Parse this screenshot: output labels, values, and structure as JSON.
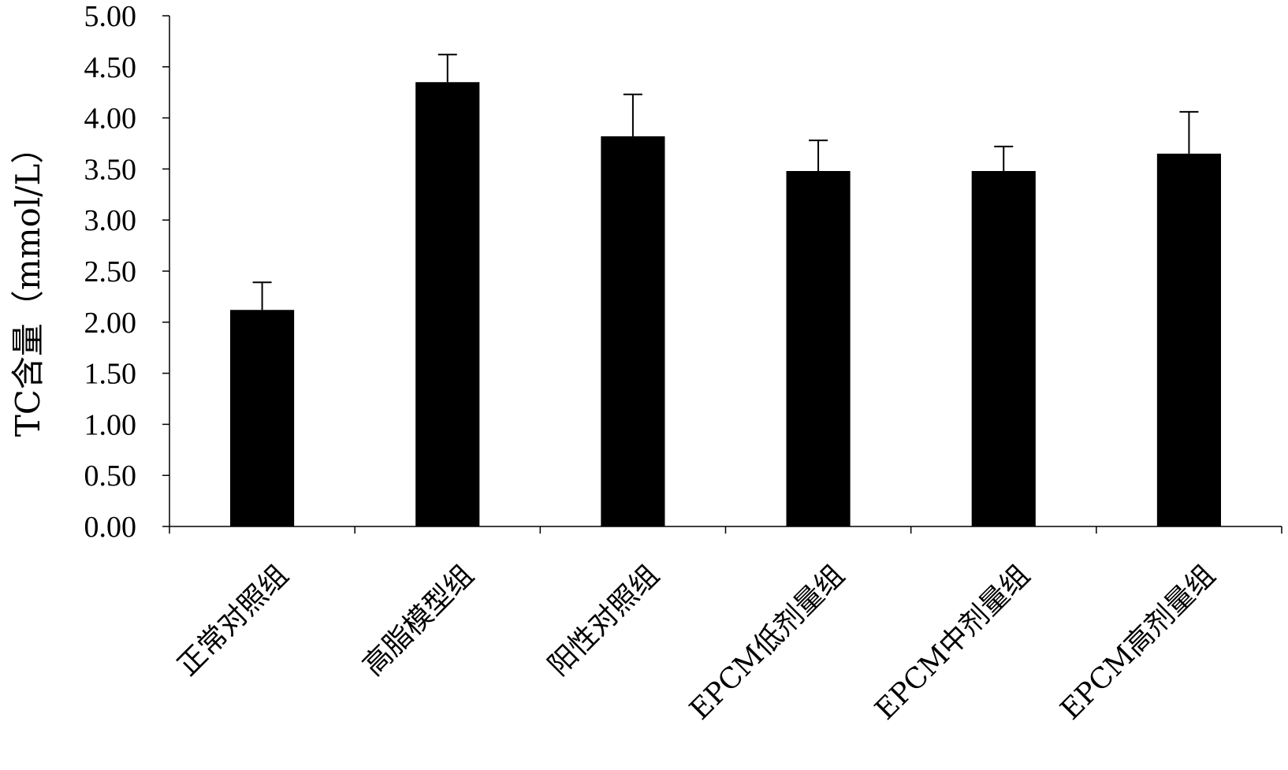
{
  "chart_data": {
    "type": "bar",
    "title": "",
    "xlabel": "",
    "ylabel": "TC含量（mmol/L）",
    "ylim": [
      0,
      5
    ],
    "yticks": [
      "0.00",
      "0.50",
      "1.00",
      "1.50",
      "2.00",
      "2.50",
      "3.00",
      "3.50",
      "4.00",
      "4.50",
      "5.00"
    ],
    "categories": [
      "正常对照组",
      "高脂模型组",
      "阳性对照组",
      "EPCM低剂量组",
      "EPCM中剂量组",
      "EPCM高剂量组"
    ],
    "values": [
      2.12,
      4.35,
      3.82,
      3.48,
      3.48,
      3.65
    ],
    "error_plus": [
      0.27,
      0.27,
      0.41,
      0.3,
      0.24,
      0.41
    ],
    "bar_color": "#000000",
    "grid": false,
    "legend": "none"
  }
}
